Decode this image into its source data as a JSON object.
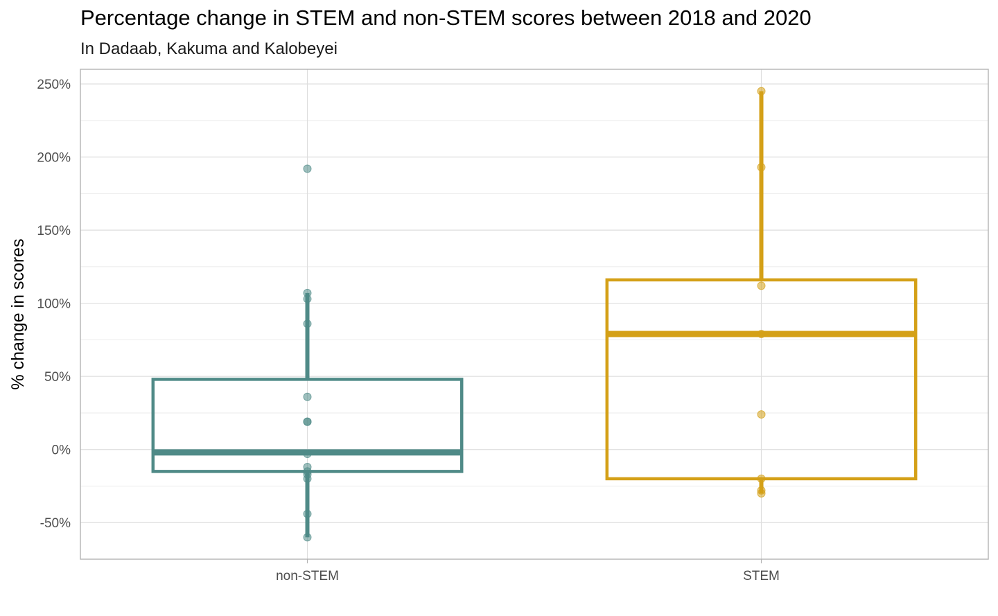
{
  "chart_data": {
    "type": "boxplot",
    "title": "Percentage change in STEM and non-STEM scores between 2018 and 2020",
    "subtitle": "In Dadaab, Kakuma and Kalobeyei",
    "ylabel": "% change in scores",
    "xlabel": "",
    "ylim": [
      -75,
      260
    ],
    "yticks": [
      -50,
      0,
      50,
      100,
      150,
      200,
      250
    ],
    "ytick_labels": [
      "-50%",
      "0%",
      "50%",
      "100%",
      "150%",
      "200%",
      "250%"
    ],
    "grid": true,
    "categories": [
      "non-STEM",
      "STEM"
    ],
    "series": [
      {
        "name": "non-STEM",
        "color": "#4f8a87",
        "box": {
          "whisker_low": -60,
          "q1": -15,
          "median": -2,
          "q3": 48,
          "whisker_high": 107
        },
        "points": [
          192,
          107,
          103,
          86,
          36,
          19,
          19,
          -3,
          -12,
          -15,
          -17,
          -20,
          -44,
          -60
        ]
      },
      {
        "name": "STEM",
        "color": "#d4a017",
        "box": {
          "whisker_low": -30,
          "q1": -20,
          "median": 79,
          "q3": 116,
          "whisker_high": 245
        },
        "points": [
          245,
          193,
          112,
          79,
          24,
          -20,
          -28,
          -30
        ]
      }
    ]
  }
}
